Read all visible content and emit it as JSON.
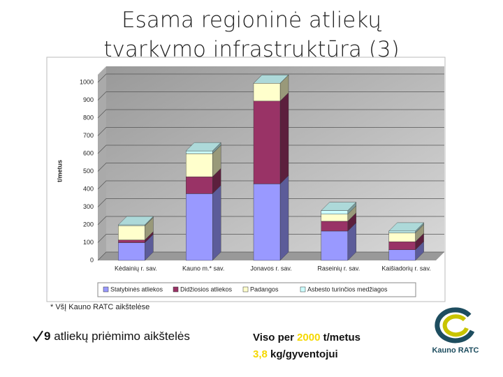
{
  "title": "Esama regioninė atliekų tvarkymo infrastruktūra (3)",
  "chart_data": {
    "type": "bar",
    "stacked": true,
    "categories": [
      "Kėdainių r. sav.",
      "Kauno m.* sav.",
      "Jonavos r. sav.",
      "Raseinių r. sav.",
      "Kaišiadorių r. sav."
    ],
    "series": [
      {
        "name": "Statybinės atliekos",
        "color": "#9999ff",
        "values": [
          100,
          375,
          430,
          165,
          60
        ]
      },
      {
        "name": "Didžiosios atliekos",
        "color": "#993366",
        "values": [
          15,
          95,
          465,
          55,
          45
        ]
      },
      {
        "name": "Padangos",
        "color": "#ffffcc",
        "values": [
          80,
          130,
          100,
          40,
          50
        ]
      },
      {
        "name": "Asbesto turinčios medžiagos",
        "color": "#ccffff",
        "values": [
          5,
          15,
          0,
          20,
          10
        ]
      }
    ],
    "y_label": "t/metus",
    "ylim": [
      0,
      1000
    ],
    "yticks": [
      0,
      100,
      200,
      300,
      400,
      500,
      600,
      700,
      800,
      900,
      1000
    ],
    "grid": true,
    "legend": "bottom"
  },
  "footnote": "* VšĮ Kauno RATC aikštelėse",
  "bullet": {
    "count": 9,
    "text": "atliekų priėmimo aikštelės"
  },
  "stats": [
    {
      "prefix": "Viso per",
      "value": 2000,
      "suffix": "t/metus"
    },
    {
      "value": "3,8",
      "suffix": "kg/gyventojui"
    }
  ],
  "logo": "Kauno RATC"
}
